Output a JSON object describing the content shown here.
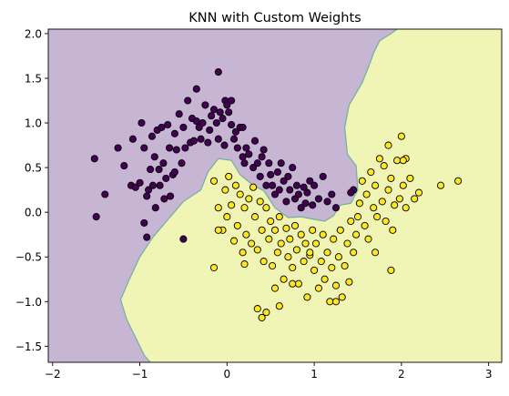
{
  "chart_data": {
    "type": "scatter",
    "title": "KNN with Custom Weights",
    "xlabel": "",
    "ylabel": "",
    "xlim": [
      -2.05,
      3.15
    ],
    "ylim": [
      -1.68,
      2.05
    ],
    "xticks": [
      -2,
      -1,
      0,
      1,
      2,
      3
    ],
    "yticks": [
      -1.5,
      -1.0,
      -0.5,
      0.0,
      0.5,
      1.0,
      1.5,
      2.0
    ],
    "xtick_labels": [
      "−2",
      "−1",
      "0",
      "1",
      "2",
      "3"
    ],
    "ytick_labels": [
      "−1.5",
      "−1.0",
      "−0.5",
      "0.0",
      "0.5",
      "1.0",
      "1.5",
      "2.0"
    ],
    "grid": false,
    "colors": {
      "class0_point": "#440154",
      "class1_point": "#fde725",
      "class0_region": "#c6b6d4",
      "class1_region": "#f0f5b5",
      "boundary": "#6fb1a0"
    },
    "decision_boundary": {
      "x": [
        -0.88,
        -0.95,
        -1.05,
        -1.15,
        -1.22,
        -1.12,
        -1.0,
        -0.85,
        -0.65,
        -0.5,
        -0.3,
        -0.22,
        -0.1,
        0.05,
        0.15,
        0.3,
        0.42,
        0.55,
        0.7,
        0.85,
        1.0,
        1.12,
        1.22,
        1.3,
        1.42,
        1.5,
        1.48,
        1.38,
        1.35,
        1.4,
        1.55,
        1.62,
        1.68,
        1.75,
        1.88,
        1.95
      ],
      "y": [
        -1.68,
        -1.6,
        -1.4,
        -1.2,
        -0.98,
        -0.75,
        -0.5,
        -0.28,
        -0.05,
        0.12,
        0.25,
        0.45,
        0.6,
        0.58,
        0.42,
        0.3,
        0.24,
        0.05,
        -0.06,
        -0.05,
        -0.08,
        -0.1,
        -0.04,
        0.08,
        0.1,
        0.25,
        0.52,
        0.65,
        0.95,
        1.2,
        1.45,
        1.62,
        1.78,
        1.92,
        2.0,
        2.05
      ]
    },
    "series": [
      {
        "class": 0,
        "x": [
          -1.52,
          -1.5,
          -1.4,
          -1.25,
          -1.18,
          -1.1,
          -1.08,
          -1.05,
          -1.0,
          -0.98,
          -0.95,
          -0.92,
          -0.9,
          -0.88,
          -0.86,
          -0.85,
          -0.83,
          -0.8,
          -0.78,
          -0.77,
          -0.75,
          -0.73,
          -0.7,
          -0.68,
          -0.66,
          -0.65,
          -0.62,
          -0.6,
          -0.58,
          -0.55,
          -0.52,
          -0.5,
          -0.48,
          -0.45,
          -0.42,
          -0.4,
          -0.38,
          -0.35,
          -0.32,
          -0.3,
          -0.28,
          -0.25,
          -0.22,
          -0.2,
          -0.18,
          -0.15,
          -0.12,
          -0.1,
          -0.08,
          -0.05,
          -0.03,
          -0.02,
          0.0,
          0.02,
          0.05,
          0.08,
          0.1,
          0.12,
          0.15,
          0.18,
          0.2,
          0.22,
          0.25,
          0.3,
          0.32,
          0.35,
          0.38,
          0.4,
          0.42,
          0.45,
          0.48,
          0.5,
          0.52,
          0.55,
          0.58,
          0.6,
          0.62,
          0.65,
          0.68,
          0.7,
          0.72,
          0.75,
          0.78,
          0.8,
          0.82,
          0.85,
          0.88,
          0.9,
          0.92,
          0.95,
          0.98,
          1.0,
          1.05,
          1.1,
          1.15,
          1.2,
          1.25,
          1.45,
          1.42,
          -0.95,
          -0.92,
          -0.5,
          -0.72,
          0.05,
          -0.1,
          -0.35,
          0.18,
          -0.6,
          -0.82
        ],
        "y": [
          0.6,
          -0.05,
          0.2,
          0.72,
          0.52,
          0.3,
          0.82,
          0.28,
          0.33,
          1.0,
          0.72,
          0.18,
          0.25,
          0.48,
          0.85,
          0.3,
          0.62,
          0.92,
          0.48,
          0.3,
          0.95,
          0.55,
          0.38,
          0.98,
          0.72,
          0.18,
          0.42,
          0.88,
          0.7,
          1.1,
          0.55,
          0.95,
          0.72,
          1.25,
          0.78,
          1.05,
          0.8,
          1.38,
          0.95,
          0.82,
          1.0,
          1.2,
          0.78,
          0.92,
          1.08,
          1.15,
          1.0,
          0.82,
          1.12,
          1.05,
          0.75,
          1.25,
          1.2,
          1.12,
          0.98,
          0.82,
          0.9,
          0.72,
          0.95,
          0.62,
          0.55,
          0.72,
          0.65,
          0.5,
          0.8,
          0.55,
          0.4,
          0.62,
          0.7,
          0.3,
          0.55,
          0.42,
          0.3,
          0.2,
          0.45,
          0.25,
          0.55,
          0.35,
          0.12,
          0.4,
          0.25,
          0.5,
          0.15,
          0.3,
          0.2,
          0.05,
          0.28,
          0.1,
          0.22,
          0.35,
          0.08,
          0.3,
          0.15,
          0.4,
          0.12,
          0.2,
          0.05,
          0.25,
          0.22,
          -0.12,
          -0.28,
          -0.3,
          0.15,
          1.25,
          1.57,
          1.02,
          0.95,
          0.45,
          0.05
        ],
        "color": "#440154"
      },
      {
        "class": 1,
        "x": [
          -0.15,
          -0.1,
          -0.05,
          -0.02,
          0.0,
          0.02,
          0.05,
          0.08,
          0.1,
          0.12,
          0.15,
          0.18,
          0.2,
          0.22,
          0.25,
          0.28,
          0.3,
          0.32,
          0.35,
          0.38,
          0.4,
          0.42,
          0.45,
          0.48,
          0.5,
          0.52,
          0.55,
          0.58,
          0.6,
          0.62,
          0.65,
          0.68,
          0.7,
          0.72,
          0.75,
          0.78,
          0.8,
          0.82,
          0.85,
          0.88,
          0.9,
          0.92,
          0.95,
          0.98,
          1.0,
          1.02,
          1.05,
          1.08,
          1.1,
          1.12,
          1.15,
          1.18,
          1.2,
          1.22,
          1.25,
          1.28,
          1.3,
          1.32,
          1.35,
          1.38,
          1.4,
          1.42,
          1.45,
          1.48,
          1.5,
          1.52,
          1.55,
          1.58,
          1.6,
          1.62,
          1.65,
          1.68,
          1.7,
          1.72,
          1.75,
          1.78,
          1.8,
          1.82,
          1.85,
          1.88,
          1.9,
          1.92,
          1.95,
          1.98,
          2.0,
          2.02,
          2.05,
          2.1,
          2.15,
          2.2,
          2.45,
          2.65,
          1.85,
          2.05,
          -0.15,
          0.45,
          0.4,
          0.6,
          0.75,
          0.35,
          0.2,
          -0.1,
          1.7,
          1.25,
          0.95,
          0.55,
          1.88,
          2.02
        ],
        "y": [
          0.35,
          0.05,
          -0.2,
          0.25,
          -0.05,
          0.4,
          0.08,
          -0.32,
          0.3,
          -0.15,
          0.2,
          -0.45,
          0.05,
          -0.25,
          0.15,
          -0.35,
          0.28,
          -0.05,
          -0.42,
          0.12,
          -0.2,
          -0.55,
          0.05,
          -0.3,
          -0.1,
          -0.6,
          -0.2,
          -0.45,
          -0.05,
          -0.35,
          -0.75,
          -0.18,
          -0.5,
          -0.3,
          -0.62,
          -0.15,
          -0.42,
          -0.8,
          -0.25,
          -0.55,
          -0.35,
          -0.95,
          -0.48,
          -0.2,
          -0.65,
          -0.35,
          -0.85,
          -0.55,
          -0.25,
          -0.75,
          -0.45,
          -1.0,
          -0.62,
          -0.3,
          -0.82,
          -0.5,
          -0.2,
          -0.95,
          -0.6,
          -0.35,
          -0.78,
          -0.1,
          -0.45,
          -0.25,
          -0.05,
          0.1,
          0.35,
          -0.15,
          0.2,
          -0.3,
          0.45,
          0.05,
          0.3,
          -0.05,
          0.6,
          0.12,
          0.52,
          -0.1,
          0.25,
          0.38,
          -0.2,
          0.08,
          0.58,
          0.15,
          0.85,
          0.3,
          0.6,
          0.38,
          0.15,
          0.22,
          0.3,
          0.35,
          0.75,
          0.05,
          -0.62,
          -1.12,
          -1.18,
          -1.05,
          -0.8,
          -1.08,
          -0.58,
          -0.2,
          -0.45,
          -1.0,
          -0.45,
          -0.85,
          -0.65,
          0.58
        ],
        "color": "#fde725"
      }
    ]
  }
}
